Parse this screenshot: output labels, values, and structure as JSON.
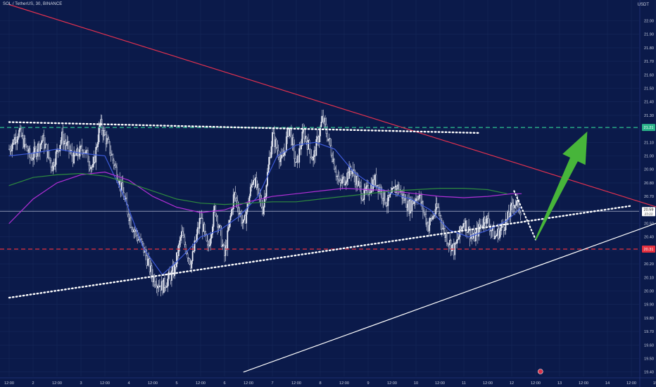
{
  "header": {
    "symbol_line": "SOL / TetherUS, 30, BINANCE"
  },
  "axis": {
    "currency": "USDT"
  },
  "colors": {
    "background": "#0b1a4a",
    "grid": "#16285a",
    "candle": "#e9ecf5",
    "ma_fast": "#3d5bd9",
    "ma_mid": "#b02fd6",
    "ma_slow": "#2e8b3e",
    "resistance_trendline": "#e0314f",
    "support_trendline": "#ffffff",
    "channel_line": "#ffffff",
    "resistance_level": "#2bb48a",
    "support_level": "#e5303f",
    "arrow": "#47b53a",
    "price_line": "#cfd6ea"
  },
  "chart_data": {
    "type": "candlestick",
    "symbol": "SOL / TetherUS",
    "interval": "30",
    "exchange": "BINANCE",
    "currency": "USDT",
    "ylim": [
      19.4,
      22.06
    ],
    "y_ticks": [
      "22.00",
      "21.90",
      "21.80",
      "21.70",
      "21.60",
      "21.50",
      "21.40",
      "21.30",
      "21.20",
      "21.10",
      "21.00",
      "20.90",
      "20.80",
      "20.70",
      "20.60",
      "20.50",
      "20.40",
      "20.30",
      "20.20",
      "20.10",
      "20.00",
      "19.90",
      "19.80",
      "19.70",
      "19.60",
      "19.50",
      "19.40"
    ],
    "x_ticks": [
      "12:00",
      "2",
      "12:00",
      "3",
      "12:00",
      "4",
      "12:00",
      "5",
      "12:00",
      "6",
      "12:00",
      "7",
      "12:00",
      "8",
      "12:00",
      "9",
      "12:00",
      "10",
      "12:00",
      "11",
      "12:00",
      "12",
      "12:00",
      "13",
      "12:00",
      "14",
      "12:00",
      "15"
    ],
    "x_range_days": [
      1.0,
      15.0
    ],
    "price_path": [
      [
        1.0,
        21.05
      ],
      [
        1.2,
        21.18
      ],
      [
        1.45,
        20.98
      ],
      [
        1.7,
        21.12
      ],
      [
        1.9,
        20.92
      ],
      [
        2.1,
        21.14
      ],
      [
        2.35,
        20.98
      ],
      [
        2.55,
        21.06
      ],
      [
        2.75,
        20.9
      ],
      [
        2.9,
        21.24
      ],
      [
        3.1,
        21.05
      ],
      [
        3.3,
        20.82
      ],
      [
        3.55,
        20.5
      ],
      [
        3.8,
        20.32
      ],
      [
        4.0,
        20.1
      ],
      [
        4.2,
        20.03
      ],
      [
        4.45,
        20.15
      ],
      [
        4.6,
        20.42
      ],
      [
        4.8,
        20.2
      ],
      [
        5.0,
        20.55
      ],
      [
        5.15,
        20.3
      ],
      [
        5.3,
        20.62
      ],
      [
        5.5,
        20.26
      ],
      [
        5.7,
        20.72
      ],
      [
        5.9,
        20.48
      ],
      [
        6.1,
        20.85
      ],
      [
        6.3,
        20.6
      ],
      [
        6.5,
        21.15
      ],
      [
        6.7,
        20.95
      ],
      [
        6.85,
        21.22
      ],
      [
        7.0,
        20.92
      ],
      [
        7.15,
        21.18
      ],
      [
        7.35,
        20.97
      ],
      [
        7.55,
        21.28
      ],
      [
        7.7,
        21.08
      ],
      [
        7.9,
        20.78
      ],
      [
        8.15,
        20.9
      ],
      [
        8.4,
        20.7
      ],
      [
        8.65,
        20.82
      ],
      [
        8.9,
        20.65
      ],
      [
        9.1,
        20.78
      ],
      [
        9.35,
        20.62
      ],
      [
        9.55,
        20.72
      ],
      [
        9.75,
        20.48
      ],
      [
        9.95,
        20.62
      ],
      [
        10.1,
        20.42
      ],
      [
        10.3,
        20.3
      ],
      [
        10.5,
        20.52
      ],
      [
        10.7,
        20.38
      ],
      [
        10.95,
        20.55
      ],
      [
        11.15,
        20.4
      ],
      [
        11.4,
        20.52
      ],
      [
        11.55,
        20.66
      ],
      [
        11.7,
        20.6
      ]
    ],
    "current_price": 20.59,
    "current_price_label": "20.59",
    "countdown_label": "23:22",
    "lines": [
      {
        "name": "moving-average-fast",
        "points": [
          [
            1.0,
            21.0
          ],
          [
            1.5,
            21.02
          ],
          [
            2.0,
            21.05
          ],
          [
            2.5,
            21.02
          ],
          [
            3.0,
            21.0
          ],
          [
            3.4,
            20.7
          ],
          [
            3.8,
            20.32
          ],
          [
            4.2,
            20.12
          ],
          [
            4.6,
            20.25
          ],
          [
            5.0,
            20.4
          ],
          [
            5.4,
            20.45
          ],
          [
            5.8,
            20.55
          ],
          [
            6.2,
            20.7
          ],
          [
            6.6,
            21.0
          ],
          [
            7.0,
            21.08
          ],
          [
            7.4,
            21.1
          ],
          [
            7.8,
            21.05
          ],
          [
            8.2,
            20.88
          ],
          [
            8.6,
            20.78
          ],
          [
            9.0,
            20.72
          ],
          [
            9.4,
            20.68
          ],
          [
            9.8,
            20.6
          ],
          [
            10.2,
            20.45
          ],
          [
            10.6,
            20.4
          ],
          [
            11.0,
            20.45
          ],
          [
            11.4,
            20.52
          ],
          [
            11.7,
            20.62
          ]
        ]
      },
      {
        "name": "moving-average-mid",
        "points": [
          [
            1.0,
            20.5
          ],
          [
            1.5,
            20.68
          ],
          [
            2.0,
            20.8
          ],
          [
            2.5,
            20.86
          ],
          [
            3.0,
            20.88
          ],
          [
            3.5,
            20.82
          ],
          [
            4.0,
            20.7
          ],
          [
            4.5,
            20.62
          ],
          [
            5.0,
            20.58
          ],
          [
            5.5,
            20.6
          ],
          [
            6.0,
            20.66
          ],
          [
            6.5,
            20.7
          ],
          [
            7.0,
            20.72
          ],
          [
            7.5,
            20.74
          ],
          [
            8.0,
            20.76
          ],
          [
            8.5,
            20.75
          ],
          [
            9.0,
            20.74
          ],
          [
            9.5,
            20.72
          ],
          [
            10.0,
            20.7
          ],
          [
            10.5,
            20.69
          ],
          [
            11.0,
            20.7
          ],
          [
            11.5,
            20.72
          ],
          [
            11.7,
            20.72
          ]
        ]
      },
      {
        "name": "moving-average-slow",
        "points": [
          [
            1.0,
            20.78
          ],
          [
            1.5,
            20.84
          ],
          [
            2.0,
            20.86
          ],
          [
            2.5,
            20.87
          ],
          [
            3.0,
            20.85
          ],
          [
            3.5,
            20.8
          ],
          [
            4.0,
            20.74
          ],
          [
            4.5,
            20.68
          ],
          [
            5.0,
            20.65
          ],
          [
            5.5,
            20.64
          ],
          [
            6.0,
            20.65
          ],
          [
            6.5,
            20.66
          ],
          [
            7.0,
            20.66
          ],
          [
            7.5,
            20.68
          ],
          [
            8.0,
            20.7
          ],
          [
            8.5,
            20.72
          ],
          [
            9.0,
            20.74
          ],
          [
            9.5,
            20.75
          ],
          [
            10.0,
            20.76
          ],
          [
            10.5,
            20.76
          ],
          [
            11.0,
            20.75
          ],
          [
            11.4,
            20.72
          ]
        ]
      },
      {
        "name": "descending-trendline",
        "points": [
          [
            1.0,
            22.12
          ],
          [
            14.9,
            20.58
          ]
        ]
      },
      {
        "name": "ascending-support-trendline",
        "points": [
          [
            1.0,
            19.95
          ],
          [
            14.0,
            20.63
          ]
        ]
      },
      {
        "name": "channel-bottom-line",
        "points": [
          [
            5.9,
            19.4
          ],
          [
            14.9,
            20.55
          ]
        ]
      },
      {
        "name": "horizontal-resistance-trendline",
        "points": [
          [
            1.0,
            21.25
          ],
          [
            10.8,
            21.17
          ]
        ]
      },
      {
        "name": "projection-dip",
        "points": [
          [
            11.55,
            20.74
          ],
          [
            12.0,
            20.38
          ]
        ]
      }
    ],
    "levels": [
      {
        "name": "resistance",
        "value": 21.21,
        "label": "21.21"
      },
      {
        "name": "support",
        "value": 20.31,
        "label": "20.31"
      }
    ],
    "arrow": {
      "from": [
        12.0,
        20.38
      ],
      "to": [
        13.08,
        21.18
      ]
    },
    "event_markers": [
      12.1,
      14.6,
      15.0,
      16.0
    ]
  }
}
